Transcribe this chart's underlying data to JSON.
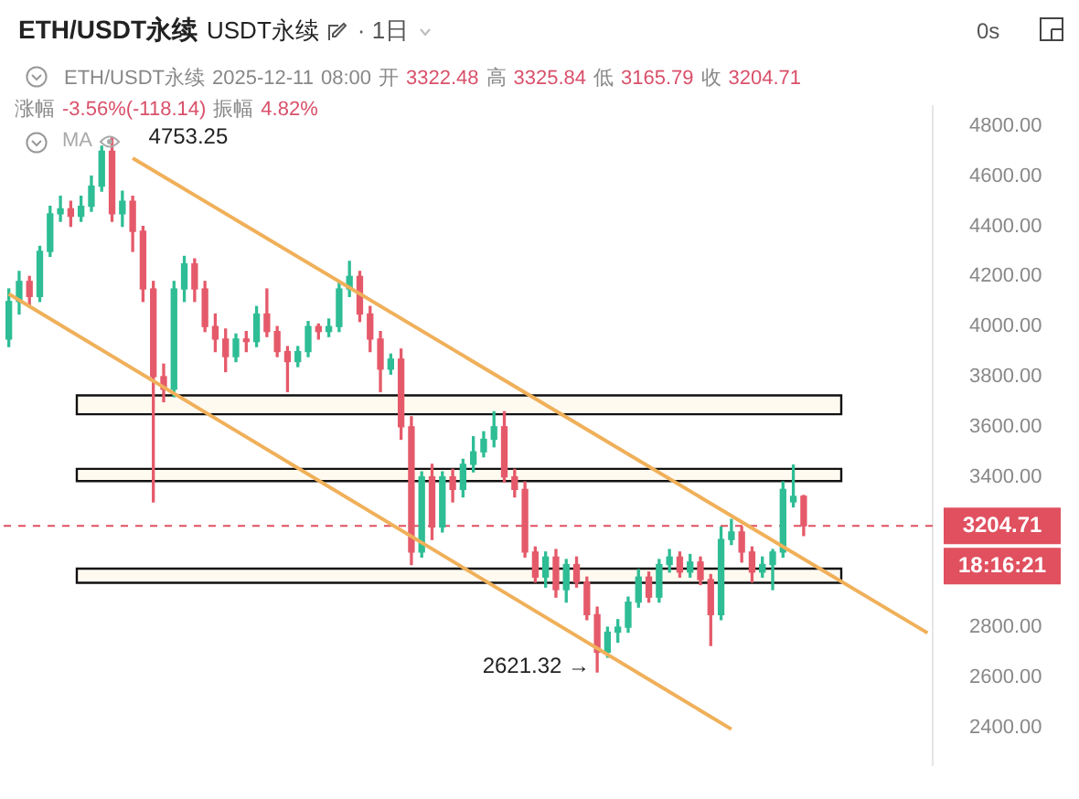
{
  "chart_data": {
    "type": "candlestick",
    "title": "ETH/USDT永续",
    "subtitle": "USDT永续",
    "categories": [
      null,
      null,
      null,
      null,
      null,
      null,
      null,
      null,
      null,
      null,
      null,
      null,
      null,
      null,
      null,
      null,
      null,
      null,
      null,
      null,
      null,
      null,
      null,
      null,
      null,
      null,
      null,
      null,
      null,
      null,
      null,
      null,
      null,
      null,
      null,
      null,
      null,
      null,
      null,
      null,
      null,
      null,
      null,
      null,
      null,
      null,
      null,
      null,
      null,
      null,
      null,
      null,
      null,
      null,
      null,
      null,
      null,
      null,
      null,
      null,
      null,
      null,
      null,
      null,
      null,
      null,
      null,
      null,
      null,
      null,
      null,
      null,
      null,
      null,
      null,
      null,
      null,
      null,
      null,
      null,
      null,
      null,
      null,
      null,
      null,
      null,
      null,
      null,
      null,
      null
    ],
    "ohlc": [
      [
        3950,
        4150,
        3920,
        4100
      ],
      [
        4100,
        4220,
        4050,
        4180
      ],
      [
        4180,
        4200,
        4080,
        4120
      ],
      [
        4120,
        4320,
        4100,
        4300
      ],
      [
        4300,
        4480,
        4280,
        4450
      ],
      [
        4450,
        4520,
        4420,
        4470
      ],
      [
        4470,
        4500,
        4400,
        4440
      ],
      [
        4440,
        4520,
        4420,
        4480
      ],
      [
        4480,
        4600,
        4460,
        4560
      ],
      [
        4560,
        4720,
        4540,
        4700
      ],
      [
        4700,
        4753.25,
        4420,
        4450
      ],
      [
        4450,
        4540,
        4400,
        4500
      ],
      [
        4500,
        4520,
        4300,
        4380
      ],
      [
        4380,
        4400,
        4100,
        4150
      ],
      [
        4150,
        4180,
        3300,
        3800
      ],
      [
        3800,
        3850,
        3700,
        3750
      ],
      [
        3750,
        4180,
        3720,
        4150
      ],
      [
        4150,
        4280,
        4100,
        4250
      ],
      [
        4250,
        4270,
        4100,
        4150
      ],
      [
        4150,
        4180,
        3980,
        4000
      ],
      [
        4000,
        4050,
        3900,
        3950
      ],
      [
        3950,
        3990,
        3820,
        3880
      ],
      [
        3880,
        3970,
        3860,
        3950
      ],
      [
        3950,
        3980,
        3900,
        3940
      ],
      [
        3940,
        4080,
        3920,
        4050
      ],
      [
        4050,
        4150,
        3960,
        3980
      ],
      [
        3980,
        4000,
        3880,
        3900
      ],
      [
        3900,
        3920,
        3740,
        3860
      ],
      [
        3860,
        3920,
        3840,
        3900
      ],
      [
        3900,
        4020,
        3880,
        4000
      ],
      [
        4000,
        4010,
        3950,
        3980
      ],
      [
        3980,
        4030,
        3960,
        4000
      ],
      [
        4000,
        4180,
        3980,
        4150
      ],
      [
        4150,
        4260,
        4120,
        4200
      ],
      [
        4200,
        4220,
        4020,
        4050
      ],
      [
        4050,
        4080,
        3900,
        3950
      ],
      [
        3950,
        3980,
        3740,
        3830
      ],
      [
        3830,
        3890,
        3810,
        3870
      ],
      [
        3870,
        3910,
        3550,
        3600
      ],
      [
        3600,
        3640,
        3050,
        3100
      ],
      [
        3100,
        3420,
        3080,
        3400
      ],
      [
        3400,
        3450,
        3150,
        3200
      ],
      [
        3200,
        3420,
        3180,
        3400
      ],
      [
        3400,
        3430,
        3300,
        3350
      ],
      [
        3350,
        3470,
        3320,
        3450
      ],
      [
        3450,
        3560,
        3420,
        3500
      ],
      [
        3500,
        3580,
        3480,
        3550
      ],
      [
        3550,
        3660,
        3520,
        3600
      ],
      [
        3600,
        3660,
        3380,
        3400
      ],
      [
        3400,
        3430,
        3320,
        3350
      ],
      [
        3350,
        3380,
        3080,
        3100
      ],
      [
        3100,
        3120,
        2980,
        3000
      ],
      [
        3000,
        3100,
        2960,
        3080
      ],
      [
        3080,
        3110,
        2920,
        2950
      ],
      [
        2950,
        3070,
        2900,
        3050
      ],
      [
        3050,
        3080,
        2960,
        2980
      ],
      [
        2980,
        3000,
        2830,
        2850
      ],
      [
        2850,
        2880,
        2621.32,
        2700
      ],
      [
        2700,
        2800,
        2680,
        2780
      ],
      [
        2780,
        2830,
        2740,
        2800
      ],
      [
        2800,
        2920,
        2780,
        2900
      ],
      [
        2900,
        3030,
        2880,
        3000
      ],
      [
        3000,
        3020,
        2900,
        2920
      ],
      [
        2920,
        3070,
        2900,
        3050
      ],
      [
        3050,
        3110,
        3020,
        3080
      ],
      [
        3080,
        3100,
        3000,
        3020
      ],
      [
        3020,
        3090,
        3000,
        3060
      ],
      [
        3060,
        3080,
        2970,
        2990
      ],
      [
        2990,
        3010,
        2727,
        2850
      ],
      [
        2850,
        3200,
        2830,
        3150
      ],
      [
        3150,
        3230,
        3130,
        3180
      ],
      [
        3180,
        3200,
        3060,
        3100
      ],
      [
        3100,
        3120,
        2980,
        3020
      ],
      [
        3020,
        3080,
        3000,
        3050
      ],
      [
        3050,
        3110,
        2950,
        3100
      ],
      [
        3100,
        3380,
        3080,
        3350
      ],
      [
        3300,
        3447,
        3280,
        3322
      ],
      [
        3322.48,
        3325.84,
        3165.79,
        3204.71
      ],
      null,
      null,
      null,
      null,
      null,
      null,
      null,
      null,
      null,
      null,
      null,
      null
    ],
    "series": [
      {
        "type": "line",
        "color": "#f0b05a",
        "values": [
          null,
          null,
          null,
          null,
          null,
          null,
          null,
          null,
          null,
          null,
          null,
          null,
          4672,
          null,
          null,
          null,
          null,
          null,
          null,
          null,
          null,
          null,
          null,
          null,
          null,
          null,
          null,
          null,
          null,
          null,
          null,
          null,
          null,
          null,
          null,
          null,
          null,
          null,
          null,
          null,
          null,
          null,
          null,
          null,
          null,
          null,
          null,
          null,
          null,
          null,
          null,
          null,
          null,
          null,
          null,
          null,
          null,
          null,
          null,
          null,
          null,
          null,
          null,
          null,
          null,
          null,
          null,
          null,
          null,
          null,
          null,
          null,
          null,
          null,
          null,
          null,
          null,
          null,
          null,
          null,
          null,
          null,
          null,
          null,
          null,
          null,
          null,
          null,
          null,
          2777
        ]
      },
      {
        "type": "line",
        "color": "#f0b05a",
        "values": [
          4130,
          null,
          null,
          null,
          null,
          null,
          null,
          null,
          null,
          null,
          null,
          null,
          null,
          null,
          null,
          null,
          null,
          null,
          null,
          null,
          null,
          null,
          null,
          null,
          null,
          null,
          null,
          null,
          null,
          null,
          null,
          null,
          null,
          null,
          null,
          null,
          null,
          null,
          null,
          null,
          null,
          null,
          null,
          null,
          null,
          null,
          null,
          null,
          null,
          null,
          null,
          null,
          null,
          null,
          null,
          null,
          null,
          null,
          null,
          null,
          null,
          null,
          null,
          null,
          null,
          null,
          null,
          null,
          null,
          null,
          2393,
          null,
          null,
          null,
          null,
          null,
          null,
          null,
          null,
          null,
          null,
          null,
          null,
          null,
          null,
          null,
          null,
          null,
          null,
          null
        ]
      }
    ],
    "ylim": [
      2250,
      4880
    ],
    "yticks": [
      {
        "value": 2400,
        "label": "2400.00"
      },
      {
        "value": 2600,
        "label": "2600.00"
      },
      {
        "value": 2800,
        "label": "2800.00"
      },
      {
        "value": 3400,
        "label": "3400.00"
      },
      {
        "value": 3600,
        "label": "3600.00"
      },
      {
        "value": 3800,
        "label": "3800.00"
      },
      {
        "value": 4000,
        "label": "4000.00"
      },
      {
        "value": 4200,
        "label": "4200.00"
      },
      {
        "value": 4400,
        "label": "4400.00"
      },
      {
        "value": 4600,
        "label": "4600.00"
      },
      {
        "value": 4800,
        "label": "4800.00"
      }
    ],
    "tick_labels": "y",
    "grid": false,
    "legend": false,
    "bands": [
      {
        "axis": "y",
        "from": 3650,
        "to": 3725,
        "color": "#fffaf0"
      },
      {
        "axis": "y",
        "from": 3383,
        "to": 3432,
        "color": "#fffaf0"
      },
      {
        "axis": "y",
        "from": 2977,
        "to": 3034,
        "color": "#fffaf0"
      }
    ],
    "ref_lines": [
      {
        "axis": "y",
        "value": 3204.71,
        "label": "3204.71",
        "color": "#e0505f",
        "line_style": "dashed"
      }
    ],
    "annotations": [
      "· 1日",
      "0s",
      "ETH/USDT永续 2025-12-11 08:00 开 3322.48 高 3325.84 低 3165.79 收 3204.71",
      "涨幅 -3.56%(-118.14) 振幅 4.82%",
      "MA",
      "18:16:21",
      "4753.25",
      "2621.32 →"
    ]
  }
}
